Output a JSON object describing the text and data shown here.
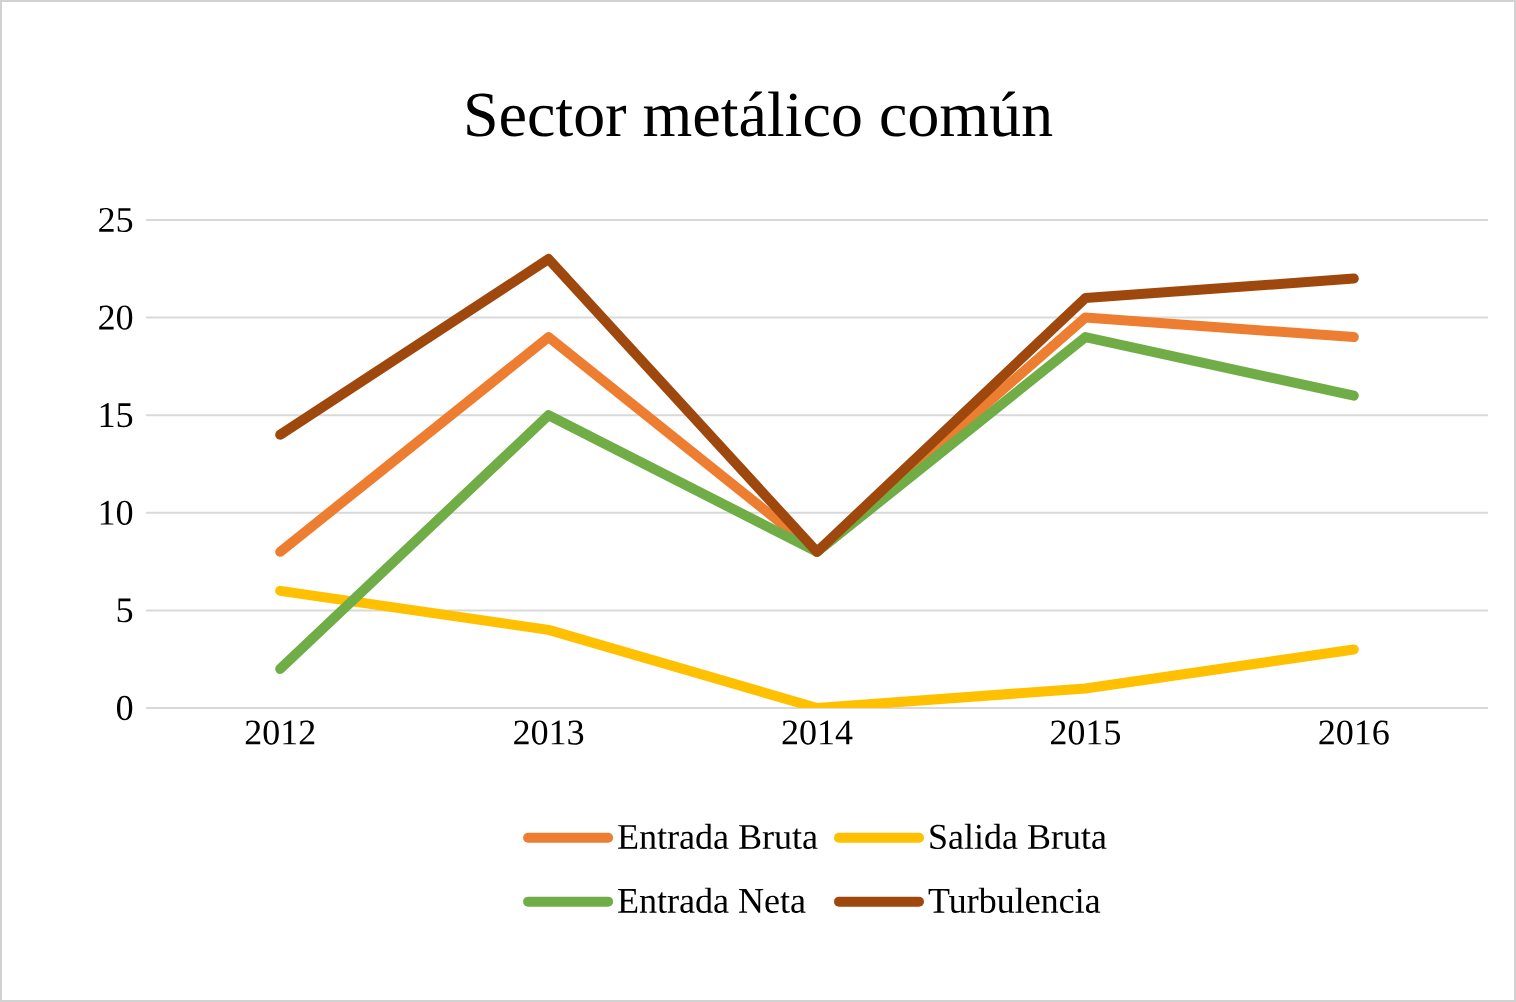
{
  "chart_data": {
    "type": "line",
    "title": "Sector metálico común",
    "categories": [
      "2012",
      "2013",
      "2014",
      "2015",
      "2016"
    ],
    "series": [
      {
        "name": "Entrada Bruta",
        "color": "#ed7d31",
        "values": [
          8,
          19,
          8,
          20,
          19
        ]
      },
      {
        "name": "Salida Bruta",
        "color": "#ffc000",
        "values": [
          6,
          4,
          0,
          1,
          3
        ]
      },
      {
        "name": "Entrada Neta",
        "color": "#70ad47",
        "values": [
          2,
          15,
          8,
          19,
          16
        ]
      },
      {
        "name": "Turbulencia",
        "color": "#9e480e",
        "values": [
          14,
          23,
          8,
          21,
          22
        ]
      }
    ],
    "ylim": [
      0,
      25
    ],
    "yticks": [
      0,
      5,
      10,
      15,
      20,
      25
    ],
    "grid": "y",
    "legend": "bottom",
    "marker": "none",
    "line_style": "solid"
  }
}
